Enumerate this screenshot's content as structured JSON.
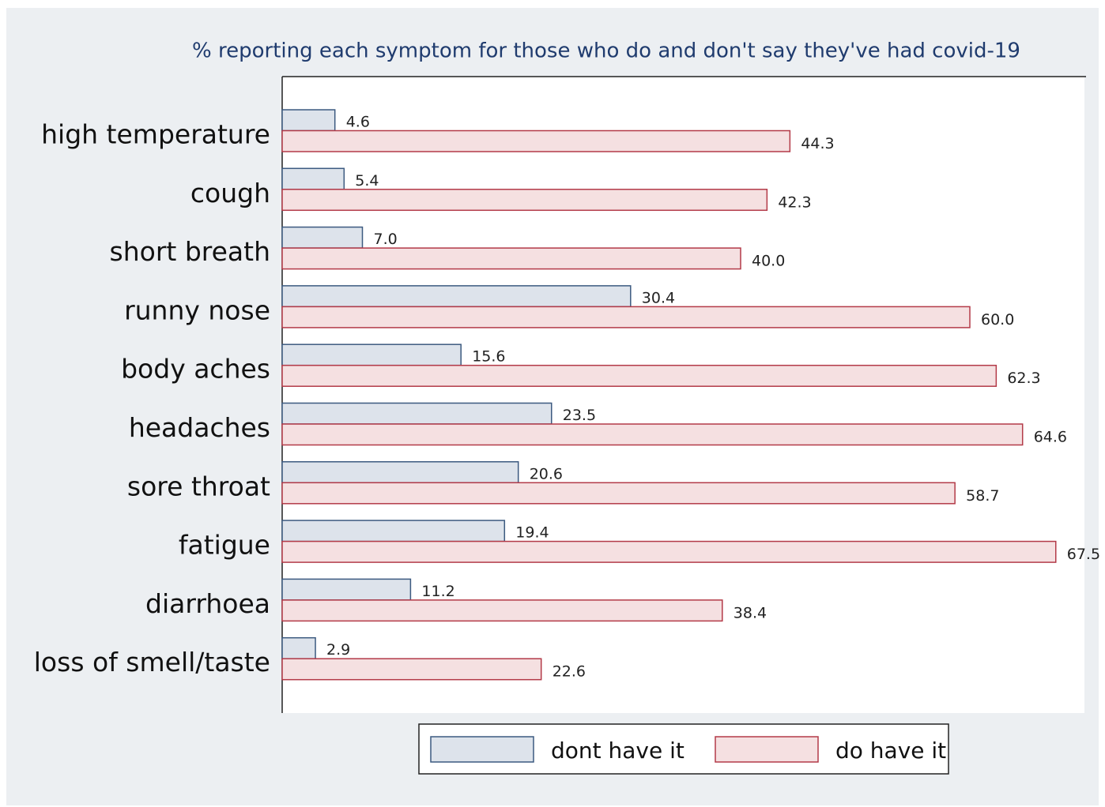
{
  "chart_data": {
    "type": "hbar",
    "title": "% reporting each symptom for those who do and don't say they've had covid-19",
    "categories": [
      "high temperature",
      "cough",
      "short breath",
      "runny nose",
      "body aches",
      "headaches",
      "sore throat",
      "fatigue",
      "diarrhoea",
      "loss of smell/taste"
    ],
    "series": [
      {
        "name": "dont have it",
        "color": "#dde3eb",
        "stroke": "#3c5a80",
        "values": [
          4.6,
          5.4,
          7.0,
          30.4,
          15.6,
          23.5,
          20.6,
          19.4,
          11.2,
          2.9
        ],
        "value_labels": [
          "4.6",
          "5.4",
          "7.0",
          "30.4",
          "15.6",
          "23.5",
          "20.6",
          "19.4",
          "11.2",
          "2.9"
        ]
      },
      {
        "name": "do have it",
        "color": "#f5e0e1",
        "stroke": "#b33a48",
        "values": [
          44.3,
          42.3,
          40.0,
          60.0,
          62.3,
          64.6,
          58.7,
          67.5,
          38.4,
          22.6
        ],
        "value_labels": [
          "44.3",
          "42.3",
          "40.0",
          "60.0",
          "62.3",
          "64.6",
          "58.7",
          "67.5",
          "38.4",
          "22.6"
        ]
      }
    ],
    "xlim": [
      0,
      70
    ]
  }
}
